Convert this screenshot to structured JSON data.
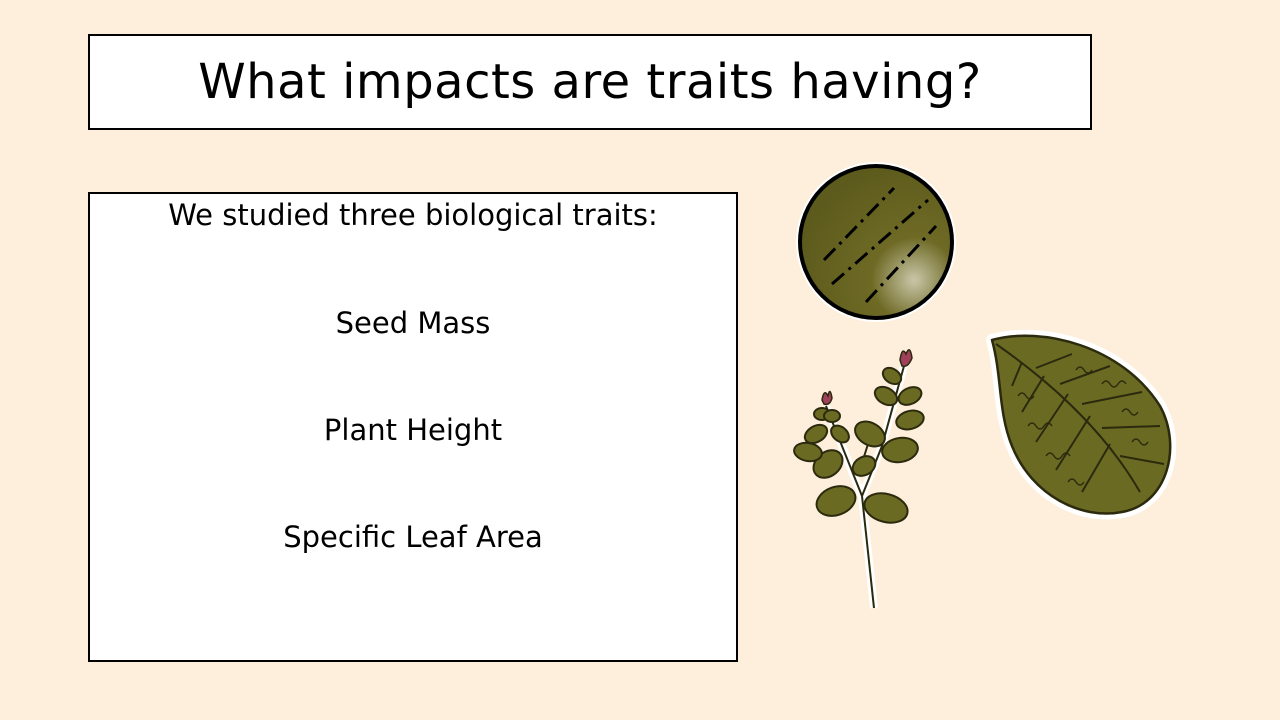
{
  "slide": {
    "title": "What impacts are traits having?",
    "intro": "We studied three biological traits:",
    "traits": [
      "Seed Mass",
      "Plant Height",
      "Specific Leaf Area"
    ]
  },
  "illustrations": {
    "seed": "seed-icon",
    "plant": "plant-stem-icon",
    "leaf": "leaf-icon"
  },
  "colors": {
    "background": "#fdefdb",
    "foliage": "#6b6a22",
    "foliage_dark": "#3f3e12",
    "flower": "#a0405a"
  }
}
